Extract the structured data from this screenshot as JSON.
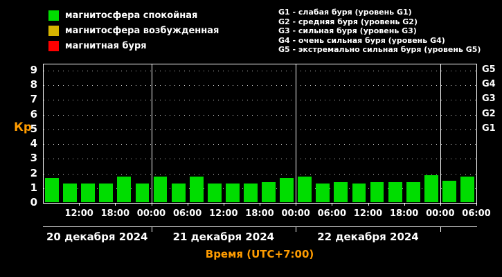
{
  "legend": {
    "items": [
      {
        "id": "quiet",
        "label": "магнитосфера спокойная",
        "color": "#00dd00"
      },
      {
        "id": "excited",
        "label": "магнитосфера возбужденная",
        "color": "#d6b400"
      },
      {
        "id": "storm",
        "label": "магнитная буря",
        "color": "#ff0000"
      }
    ]
  },
  "storm_level_descriptions": [
    "G1 - слабая буря (уровень G1)",
    "G2 - средняя буря (уровень G2)",
    "G3 - сильная буря (уровень G3)",
    "G4 - очень сильная буря (уровень G4)",
    "G5 - экстремально сильная буря (уровень G5)"
  ],
  "chart_data": {
    "type": "bar",
    "title": "",
    "ylabel": "Кр",
    "xlabel": "Время (UTC+7:00)",
    "ylim": [
      0,
      9
    ],
    "grid": "dotted-horizontal",
    "legend_position": "top-left",
    "bar_color": "#00dd00",
    "interval_hours": 3,
    "total_hours": 72,
    "start_time": "20 декабря 2024 06:00",
    "values": [
      1.7,
      1.3,
      1.3,
      1.3,
      1.8,
      1.3,
      1.8,
      1.3,
      1.8,
      1.3,
      1.3,
      1.3,
      1.4,
      1.7,
      1.8,
      1.3,
      1.4,
      1.3,
      1.4,
      1.4,
      1.4,
      1.9,
      1.5,
      1.8
    ],
    "yticks": [
      "0",
      "1",
      "2",
      "3",
      "4",
      "5",
      "6",
      "7",
      "8",
      "9"
    ],
    "right_axis": [
      {
        "label": "G1",
        "value": 5
      },
      {
        "label": "G2",
        "value": 6
      },
      {
        "label": "G3",
        "value": 7
      },
      {
        "label": "G4",
        "value": 8
      },
      {
        "label": "G5",
        "value": 9
      }
    ],
    "time_ticks": [
      {
        "label": "12:00",
        "hour": 6
      },
      {
        "label": "18:00",
        "hour": 12
      },
      {
        "label": "00:00",
        "hour": 18
      },
      {
        "label": "06:00",
        "hour": 24
      },
      {
        "label": "12:00",
        "hour": 30
      },
      {
        "label": "18:00",
        "hour": 36
      },
      {
        "label": "00:00",
        "hour": 42
      },
      {
        "label": "06:00",
        "hour": 48
      },
      {
        "label": "12:00",
        "hour": 54
      },
      {
        "label": "18:00",
        "hour": 60
      },
      {
        "label": "00:00",
        "hour": 66
      },
      {
        "label": "06:00",
        "hour": 72
      }
    ],
    "day_separators_hours": [
      18,
      42,
      66
    ],
    "dates": [
      {
        "label": "20 декабря 2024",
        "start_hour": 0,
        "end_hour": 18
      },
      {
        "label": "21 декабря 2024",
        "start_hour": 18,
        "end_hour": 42
      },
      {
        "label": "22 декабря 2024",
        "start_hour": 42,
        "end_hour": 66
      }
    ]
  },
  "colors": {
    "background": "#000000",
    "axis": "#ffffff",
    "text": "#ffffff",
    "accent_orange": "#ff9c00",
    "bar_green": "#00dd00"
  }
}
